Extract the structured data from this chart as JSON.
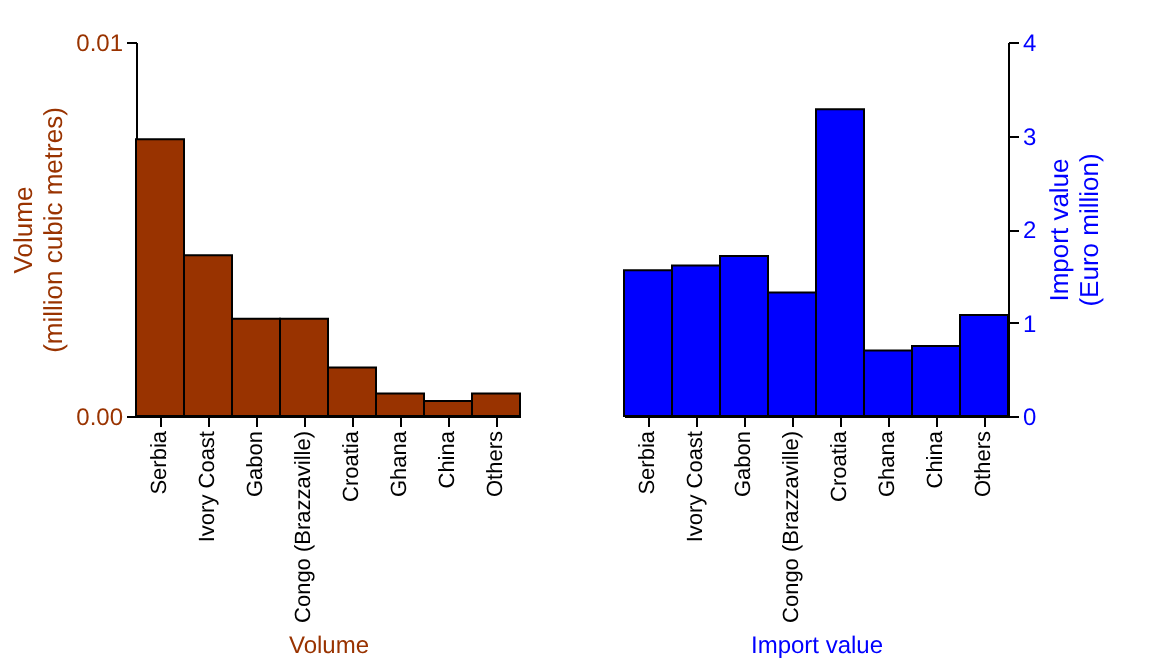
{
  "chart_data": [
    {
      "type": "bar",
      "categories": [
        "Serbia",
        "Ivory Coast",
        "Gabon",
        "Congo (Brazzaville)",
        "Croatia",
        "Ghana",
        "China",
        "Others"
      ],
      "xlabel": "Volume",
      "ylabel": "Volume\n(million cubic metres)",
      "series": [
        {
          "color": "#993300",
          "values": [
            0.0074,
            0.0043,
            0.0026,
            0.0026,
            0.0013,
            0.0006,
            0.0004,
            0.0006
          ]
        }
      ],
      "ylim": [
        0,
        0.01
      ],
      "yticks": [
        {
          "value": 0,
          "label": "0.00"
        },
        {
          "value": 0.01,
          "label": "0.01"
        }
      ],
      "legend": false
    },
    {
      "type": "bar",
      "categories": [
        "Serbia",
        "Ivory Coast",
        "Gabon",
        "Congo (Brazzaville)",
        "Croatia",
        "Ghana",
        "China",
        "Others"
      ],
      "xlabel": "Import value",
      "y2label": "Import value\n(Euro million)",
      "series": [
        {
          "color": "#0000ff",
          "axis": "y2",
          "values": [
            1.56,
            1.61,
            1.71,
            1.32,
            3.28,
            0.7,
            0.75,
            1.08
          ]
        }
      ],
      "y2lim": [
        0,
        4
      ],
      "y2ticks": [
        0,
        1,
        2,
        3,
        4
      ],
      "legend": false
    }
  ]
}
